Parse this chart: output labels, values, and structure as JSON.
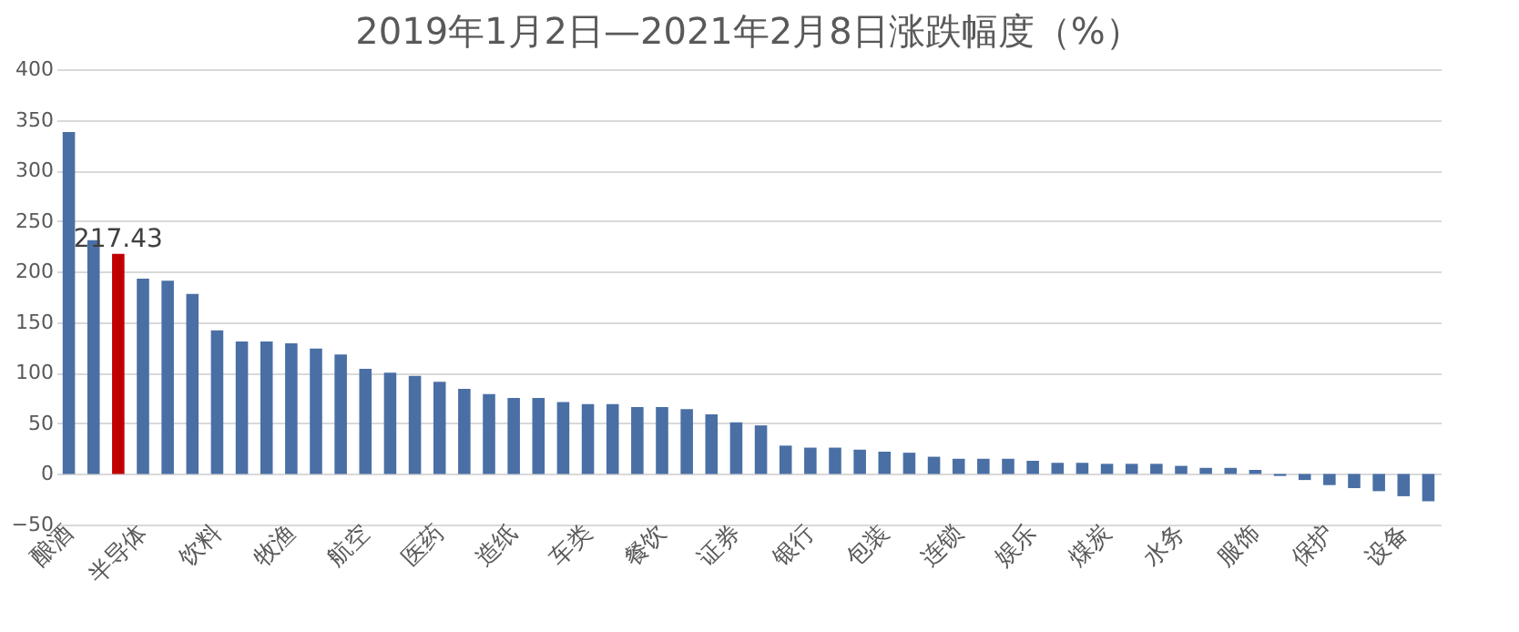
{
  "chart_data": {
    "type": "bar",
    "title": "2019年1月2日—2021年2月8日涨跌幅度（%）",
    "categories": [
      "酿酒",
      null,
      null,
      "半导体",
      null,
      null,
      "饮料",
      null,
      null,
      "牧渔",
      null,
      null,
      "航空",
      null,
      null,
      "医药",
      null,
      null,
      "造纸",
      null,
      null,
      "车类",
      null,
      null,
      "餐饮",
      null,
      null,
      "证券",
      null,
      null,
      "银行",
      null,
      null,
      "包装",
      null,
      null,
      "连锁",
      null,
      null,
      "娱乐",
      null,
      null,
      "煤炭",
      null,
      null,
      "水务",
      null,
      null,
      "服饰",
      null,
      null,
      "保护",
      null,
      null,
      "设备",
      null
    ],
    "values": [
      338,
      231,
      217.43,
      193,
      191,
      178,
      142,
      131,
      131,
      129,
      124,
      118,
      104,
      100,
      97,
      91,
      84,
      79,
      75,
      75,
      71,
      69,
      69,
      66,
      66,
      64,
      59,
      51,
      48,
      28,
      26,
      26,
      24,
      22,
      21,
      17,
      15,
      15,
      15,
      13,
      11,
      11,
      10,
      10,
      10,
      8,
      6,
      6,
      4,
      -2,
      -6,
      -11,
      -14,
      -17,
      -22,
      -27
    ],
    "colors": [
      "#4a6fa5",
      "#4a6fa5",
      "#c00000",
      "#4a6fa5",
      "#4a6fa5",
      "#4a6fa5",
      "#4a6fa5",
      "#4a6fa5",
      "#4a6fa5",
      "#4a6fa5",
      "#4a6fa5",
      "#4a6fa5",
      "#4a6fa5",
      "#4a6fa5",
      "#4a6fa5",
      "#4a6fa5",
      "#4a6fa5",
      "#4a6fa5",
      "#4a6fa5",
      "#4a6fa5",
      "#4a6fa5",
      "#4a6fa5",
      "#4a6fa5",
      "#4a6fa5",
      "#4a6fa5",
      "#4a6fa5",
      "#4a6fa5",
      "#4a6fa5",
      "#4a6fa5",
      "#4a6fa5",
      "#4a6fa5",
      "#4a6fa5",
      "#4a6fa5",
      "#4a6fa5",
      "#4a6fa5",
      "#4a6fa5",
      "#4a6fa5",
      "#4a6fa5",
      "#4a6fa5",
      "#4a6fa5",
      "#4a6fa5",
      "#4a6fa5",
      "#4a6fa5",
      "#4a6fa5",
      "#4a6fa5",
      "#4a6fa5",
      "#4a6fa5",
      "#4a6fa5",
      "#4a6fa5",
      "#4a6fa5",
      "#4a6fa5",
      "#4a6fa5",
      "#4a6fa5",
      "#4a6fa5",
      "#4a6fa5",
      "#4a6fa5"
    ],
    "value_labels": [
      null,
      null,
      "217.43",
      null,
      null,
      null,
      null,
      null,
      null,
      null,
      null,
      null,
      null,
      null,
      null,
      null,
      null,
      null,
      null,
      null,
      null,
      null,
      null,
      null,
      null,
      null,
      null,
      null,
      null,
      null,
      null,
      null,
      null,
      null,
      null,
      null,
      null,
      null,
      null,
      null,
      null,
      null,
      null,
      null,
      null,
      null,
      null,
      null,
      null,
      null,
      null,
      null,
      null,
      null,
      null,
      null
    ],
    "ylim": [
      -50,
      400
    ],
    "yticks": [
      -50,
      0,
      50,
      100,
      150,
      200,
      250,
      300,
      350,
      400
    ],
    "grid": "y"
  }
}
